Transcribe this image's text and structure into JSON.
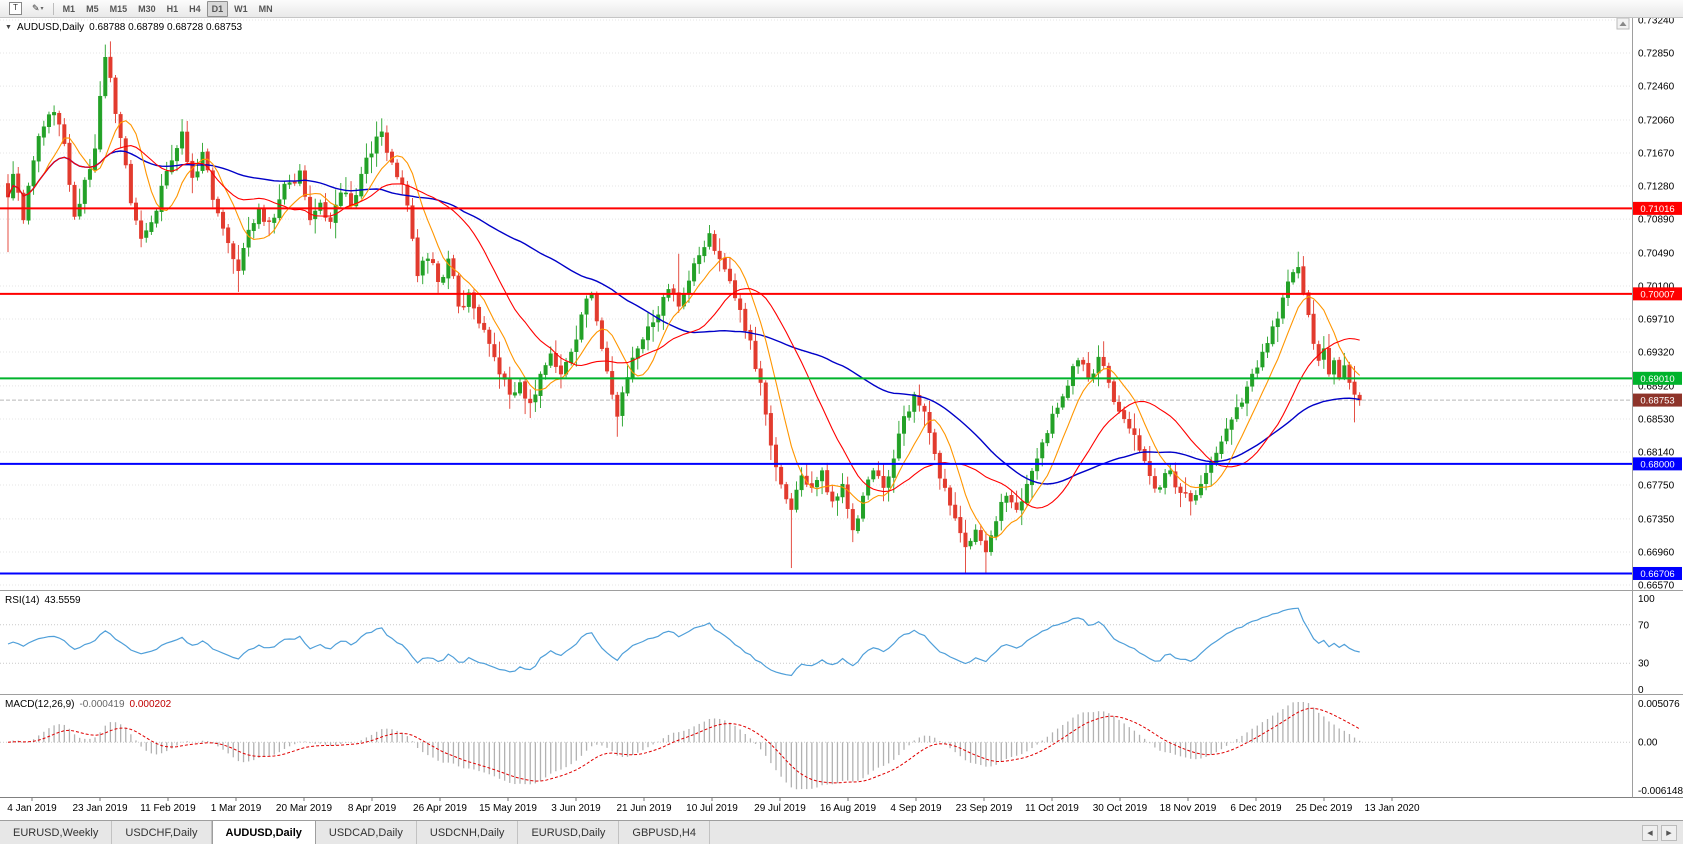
{
  "toolbar": {
    "text_tool_glyph": "T",
    "draw_tool_glyph": "✎",
    "timeframes": [
      "M1",
      "M5",
      "M15",
      "M30",
      "H1",
      "H4",
      "D1",
      "W1",
      "MN"
    ],
    "active_timeframe": "D1"
  },
  "chart": {
    "collapse_icon": "▼",
    "title": "AUDUSD,Daily",
    "ohlc_text": "0.68788 0.68789 0.68728 0.68753",
    "bid_price": "0.68753",
    "price_axis_labels": [
      "0.73240",
      "0.72850",
      "0.72460",
      "0.72060",
      "0.71670",
      "0.71280",
      "0.70890",
      "0.70490",
      "0.70100",
      "0.69710",
      "0.69320",
      "0.68920",
      "0.68530",
      "0.68140",
      "0.67750",
      "0.67350",
      "0.66960",
      "0.66570"
    ],
    "hlines": [
      {
        "price": 0.71016,
        "label": "0.71016",
        "color": "#ff0000",
        "width": 2
      },
      {
        "price": 0.70007,
        "label": "0.70007",
        "color": "#ff0000",
        "width": 2
      },
      {
        "price": 0.6901,
        "label": "0.69010",
        "color": "#00b32c",
        "width": 2
      },
      {
        "price": 0.68,
        "label": "0.68000",
        "color": "#0000ff",
        "width": 2
      },
      {
        "price": 0.66706,
        "label": "0.66706",
        "color": "#0000ff",
        "width": 2
      }
    ]
  },
  "indicators": {
    "rsi": {
      "label": "RSI(14)",
      "value": "43.5559",
      "axis_labels": [
        "100",
        "70",
        "30",
        "0"
      ],
      "levels": [
        70,
        30
      ],
      "color": "#4f9fd9"
    },
    "macd": {
      "label": "MACD(12,26,9)",
      "value_main": "-0.000419",
      "value_signal": "0.000202",
      "axis_labels": [
        "0.005076",
        "0.00",
        "-0.006148"
      ]
    }
  },
  "colors": {
    "candle_up": "#23a127",
    "candle_down": "#e23b2e",
    "bid_tag": "#8e342a",
    "macd_hist": "#b2b2b2",
    "macd_signal": "#e00000"
  },
  "tabs": {
    "items": [
      "EURUSD,Weekly",
      "USDCHF,Daily",
      "AUDUSD,Daily",
      "USDCAD,Daily",
      "USDCNH,Daily",
      "EURUSD,Daily",
      "GBPUSD,H4"
    ],
    "active_index": 2,
    "scroll_left_icon": "◀",
    "scroll_right_icon": "▶"
  },
  "chart_data": {
    "type": "candlestick",
    "symbol": "AUDUSD",
    "timeframe": "Daily",
    "bars": 265,
    "y_min": 0.6657,
    "y_max": 0.7324,
    "last_close": 0.68753,
    "horizontal_levels": [
      0.71016,
      0.70007,
      0.6901,
      0.68,
      0.66706
    ],
    "x_labels": [
      "4 Jan 2019",
      "23 Jan 2019",
      "11 Feb 2019",
      "1 Mar 2019",
      "20 Mar 2019",
      "8 Apr 2019",
      "26 Apr 2019",
      "15 May 2019",
      "3 Jun 2019",
      "21 Jun 2019",
      "10 Jul 2019",
      "29 Jul 2019",
      "16 Aug 2019",
      "4 Sep 2019",
      "23 Sep 2019",
      "11 Oct 2019",
      "30 Oct 2019",
      "18 Nov 2019",
      "6 Dec 2019",
      "25 Dec 2019",
      "13 Jan 2020"
    ],
    "noise_amp": 0.0009,
    "close_anchors": [
      [
        0,
        0.7115
      ],
      [
        1,
        0.7142
      ],
      [
        3,
        0.7088
      ],
      [
        5,
        0.7158
      ],
      [
        7,
        0.7198
      ],
      [
        9,
        0.7215
      ],
      [
        11,
        0.7178
      ],
      [
        13,
        0.7092
      ],
      [
        15,
        0.7135
      ],
      [
        17,
        0.7172
      ],
      [
        19,
        0.728
      ],
      [
        20,
        0.7256
      ],
      [
        22,
        0.7185
      ],
      [
        24,
        0.7108
      ],
      [
        26,
        0.7066
      ],
      [
        28,
        0.7085
      ],
      [
        30,
        0.7128
      ],
      [
        32,
        0.7158
      ],
      [
        34,
        0.7192
      ],
      [
        36,
        0.7138
      ],
      [
        38,
        0.7168
      ],
      [
        40,
        0.7112
      ],
      [
        42,
        0.7078
      ],
      [
        44,
        0.7042
      ],
      [
        45,
        0.7028
      ],
      [
        47,
        0.7076
      ],
      [
        49,
        0.7102
      ],
      [
        51,
        0.7086
      ],
      [
        53,
        0.7112
      ],
      [
        55,
        0.7132
      ],
      [
        57,
        0.7146
      ],
      [
        59,
        0.7088
      ],
      [
        61,
        0.7108
      ],
      [
        63,
        0.7086
      ],
      [
        65,
        0.712
      ],
      [
        67,
        0.7105
      ],
      [
        69,
        0.7142
      ],
      [
        71,
        0.7166
      ],
      [
        73,
        0.7192
      ],
      [
        75,
        0.7156
      ],
      [
        77,
        0.713
      ],
      [
        79,
        0.7066
      ],
      [
        80,
        0.7022
      ],
      [
        82,
        0.7042
      ],
      [
        84,
        0.7015
      ],
      [
        86,
        0.7042
      ],
      [
        88,
        0.6986
      ],
      [
        90,
        0.7002
      ],
      [
        92,
        0.6966
      ],
      [
        94,
        0.6942
      ],
      [
        96,
        0.6906
      ],
      [
        98,
        0.6882
      ],
      [
        100,
        0.6896
      ],
      [
        102,
        0.6872
      ],
      [
        104,
        0.6906
      ],
      [
        106,
        0.693
      ],
      [
        108,
        0.6906
      ],
      [
        110,
        0.6932
      ],
      [
        112,
        0.6976
      ],
      [
        114,
        0.7
      ],
      [
        116,
        0.6936
      ],
      [
        118,
        0.6882
      ],
      [
        119,
        0.6856
      ],
      [
        121,
        0.6902
      ],
      [
        123,
        0.6936
      ],
      [
        125,
        0.6962
      ],
      [
        127,
        0.6976
      ],
      [
        129,
        0.7006
      ],
      [
        131,
        0.6986
      ],
      [
        133,
        0.7016
      ],
      [
        135,
        0.7046
      ],
      [
        137,
        0.7072
      ],
      [
        139,
        0.7042
      ],
      [
        141,
        0.7016
      ],
      [
        143,
        0.6982
      ],
      [
        145,
        0.6946
      ],
      [
        147,
        0.6896
      ],
      [
        149,
        0.6822
      ],
      [
        151,
        0.6776
      ],
      [
        153,
        0.6746
      ],
      [
        155,
        0.6786
      ],
      [
        157,
        0.6772
      ],
      [
        159,
        0.6792
      ],
      [
        161,
        0.6756
      ],
      [
        163,
        0.6776
      ],
      [
        165,
        0.6722
      ],
      [
        167,
        0.6762
      ],
      [
        169,
        0.6792
      ],
      [
        171,
        0.6772
      ],
      [
        173,
        0.6806
      ],
      [
        175,
        0.6856
      ],
      [
        177,
        0.6882
      ],
      [
        179,
        0.6862
      ],
      [
        181,
        0.6812
      ],
      [
        183,
        0.6772
      ],
      [
        185,
        0.6736
      ],
      [
        187,
        0.6702
      ],
      [
        189,
        0.6722
      ],
      [
        191,
        0.6696
      ],
      [
        193,
        0.6732
      ],
      [
        195,
        0.6762
      ],
      [
        197,
        0.6746
      ],
      [
        199,
        0.6776
      ],
      [
        201,
        0.6806
      ],
      [
        203,
        0.6836
      ],
      [
        205,
        0.6866
      ],
      [
        207,
        0.6892
      ],
      [
        209,
        0.6922
      ],
      [
        211,
        0.6902
      ],
      [
        213,
        0.6926
      ],
      [
        215,
        0.6896
      ],
      [
        217,
        0.6862
      ],
      [
        219,
        0.6842
      ],
      [
        221,
        0.6816
      ],
      [
        223,
        0.6786
      ],
      [
        225,
        0.6772
      ],
      [
        227,
        0.6792
      ],
      [
        229,
        0.6766
      ],
      [
        231,
        0.6756
      ],
      [
        233,
        0.6776
      ],
      [
        235,
        0.6802
      ],
      [
        237,
        0.6826
      ],
      [
        239,
        0.6852
      ],
      [
        241,
        0.6872
      ],
      [
        243,
        0.6906
      ],
      [
        245,
        0.6932
      ],
      [
        247,
        0.6962
      ],
      [
        249,
        0.6996
      ],
      [
        251,
        0.7026
      ],
      [
        252,
        0.7032
      ],
      [
        253,
        0.7002
      ],
      [
        254,
        0.6976
      ],
      [
        255,
        0.6942
      ],
      [
        256,
        0.6922
      ],
      [
        257,
        0.6936
      ],
      [
        258,
        0.6906
      ],
      [
        259,
        0.6922
      ],
      [
        260,
        0.6902
      ],
      [
        261,
        0.6916
      ],
      [
        262,
        0.6896
      ],
      [
        263,
        0.6882
      ],
      [
        264,
        0.68753
      ]
    ],
    "extreme_wicks": [
      {
        "i": 0,
        "l": 0.705
      },
      {
        "i": 19,
        "h": 0.7295
      },
      {
        "i": 34,
        "h": 0.7207
      },
      {
        "i": 45,
        "l": 0.7003
      },
      {
        "i": 73,
        "h": 0.7206
      },
      {
        "i": 98,
        "l": 0.6865
      },
      {
        "i": 119,
        "l": 0.6832
      },
      {
        "i": 131,
        "h": 0.7048
      },
      {
        "i": 137,
        "h": 0.7082
      },
      {
        "i": 153,
        "l": 0.6677
      },
      {
        "i": 187,
        "l": 0.6671
      },
      {
        "i": 191,
        "l": 0.667
      },
      {
        "i": 231,
        "l": 0.6754
      },
      {
        "i": 252,
        "h": 0.7042
      },
      {
        "i": 263,
        "l": 0.6849
      }
    ],
    "moving_averages": [
      {
        "period": 55,
        "color": "#0000c8",
        "width": 1.4
      },
      {
        "period": 8,
        "color": "#ff9600",
        "width": 1.1
      },
      {
        "period": 21,
        "color": "#ff0000",
        "width": 1.1
      }
    ],
    "macd_scale_max": 0.005076,
    "macd_scale_min": -0.006148
  }
}
